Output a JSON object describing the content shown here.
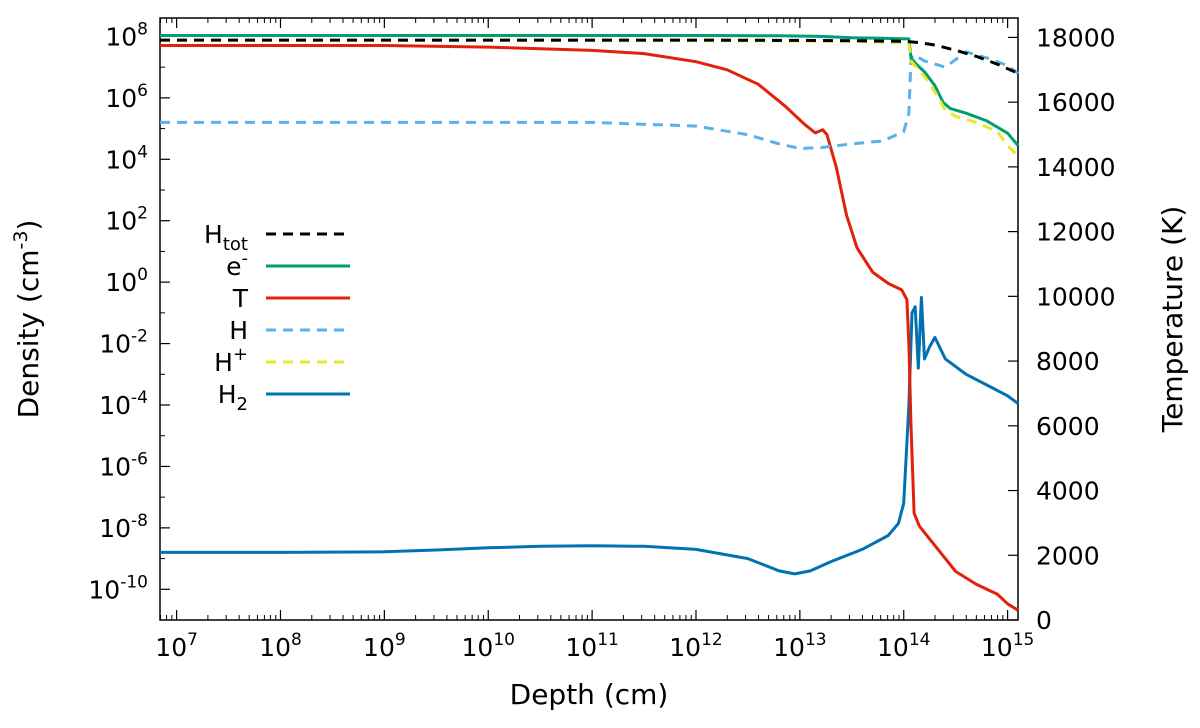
{
  "chart_data": {
    "type": "line",
    "title": "",
    "xlabel": "Depth (cm)",
    "ylabel_left": "Density (cm^-3)",
    "ylabel_right": "Temperature (K)",
    "xscale": "log",
    "yscale_left": "log",
    "xlim_log10": [
      6.84,
      15.1
    ],
    "ylim_left_log10": [
      -11.0,
      8.6
    ],
    "ylim_right": [
      0,
      18600
    ],
    "x_ticks": [
      {
        "base": "10",
        "exp": "7"
      },
      {
        "base": "10",
        "exp": "8"
      },
      {
        "base": "10",
        "exp": "9"
      },
      {
        "base": "10",
        "exp": "10"
      },
      {
        "base": "10",
        "exp": "11"
      },
      {
        "base": "10",
        "exp": "12"
      },
      {
        "base": "10",
        "exp": "13"
      },
      {
        "base": "10",
        "exp": "14"
      },
      {
        "base": "10",
        "exp": "15"
      }
    ],
    "y_left_ticks": [
      {
        "base": "10",
        "exp": "8"
      },
      {
        "base": "10",
        "exp": "6"
      },
      {
        "base": "10",
        "exp": "4"
      },
      {
        "base": "10",
        "exp": "2"
      },
      {
        "base": "10",
        "exp": "0"
      },
      {
        "base": "10",
        "exp": "-2"
      },
      {
        "base": "10",
        "exp": "-4"
      },
      {
        "base": "10",
        "exp": "-6"
      },
      {
        "base": "10",
        "exp": "-8"
      },
      {
        "base": "10",
        "exp": "-10"
      }
    ],
    "y_right_ticks": [
      "0",
      "2000",
      "4000",
      "6000",
      "8000",
      "10000",
      "12000",
      "14000",
      "16000",
      "18000"
    ],
    "legend_position": "left-middle",
    "grid": false,
    "series": [
      {
        "name": "Htot",
        "axis": "left",
        "color": "#000000",
        "dash": "dashed",
        "points_log10": [
          [
            6.84,
            7.88
          ],
          [
            10,
            7.88
          ],
          [
            12,
            7.88
          ],
          [
            13,
            7.87
          ],
          [
            13.5,
            7.86
          ],
          [
            14,
            7.84
          ],
          [
            14.15,
            7.8
          ],
          [
            14.3,
            7.72
          ],
          [
            14.5,
            7.55
          ],
          [
            14.7,
            7.35
          ],
          [
            14.9,
            7.1
          ],
          [
            15.1,
            6.8
          ]
        ]
      },
      {
        "name": "e-",
        "axis": "left",
        "color": "#009e73",
        "dash": "solid",
        "points_log10": [
          [
            6.84,
            8.03
          ],
          [
            10,
            8.03
          ],
          [
            12,
            8.03
          ],
          [
            12.8,
            8.02
          ],
          [
            13.2,
            8.0
          ],
          [
            13.5,
            7.96
          ],
          [
            13.8,
            7.94
          ],
          [
            14.05,
            7.92
          ],
          [
            14.07,
            7.3
          ],
          [
            14.12,
            7.1
          ],
          [
            14.2,
            6.85
          ],
          [
            14.3,
            6.4
          ],
          [
            14.38,
            5.85
          ],
          [
            14.45,
            5.65
          ],
          [
            14.6,
            5.5
          ],
          [
            14.8,
            5.25
          ],
          [
            15.0,
            4.85
          ],
          [
            15.1,
            4.45
          ]
        ]
      },
      {
        "name": "T",
        "axis": "right",
        "color": "#e3200b",
        "dash": "solid",
        "points_log10": [
          [
            6.84,
            17750
          ],
          [
            9,
            17750
          ],
          [
            10,
            17700
          ],
          [
            11,
            17600
          ],
          [
            11.5,
            17500
          ],
          [
            12,
            17250
          ],
          [
            12.3,
            17000
          ],
          [
            12.6,
            16550
          ],
          [
            12.85,
            15900
          ],
          [
            13.05,
            15300
          ],
          [
            13.15,
            15050
          ],
          [
            13.22,
            15150
          ],
          [
            13.26,
            15000
          ],
          [
            13.35,
            14000
          ],
          [
            13.45,
            12500
          ],
          [
            13.55,
            11500
          ],
          [
            13.7,
            10750
          ],
          [
            13.85,
            10400
          ],
          [
            13.98,
            10200
          ],
          [
            14.03,
            9900
          ],
          [
            14.05,
            8500
          ],
          [
            14.07,
            6000
          ],
          [
            14.1,
            3300
          ],
          [
            14.15,
            2900
          ],
          [
            14.3,
            2300
          ],
          [
            14.5,
            1500
          ],
          [
            14.7,
            1100
          ],
          [
            14.9,
            800
          ],
          [
            15.0,
            500
          ],
          [
            15.1,
            300
          ]
        ]
      },
      {
        "name": "H",
        "axis": "left",
        "color": "#56b4e9",
        "dash": "dashed",
        "points_log10": [
          [
            6.84,
            5.2
          ],
          [
            9,
            5.2
          ],
          [
            10,
            5.2
          ],
          [
            11,
            5.2
          ],
          [
            12,
            5.08
          ],
          [
            12.5,
            4.8
          ],
          [
            12.8,
            4.5
          ],
          [
            13.0,
            4.35
          ],
          [
            13.2,
            4.38
          ],
          [
            13.5,
            4.5
          ],
          [
            13.8,
            4.6
          ],
          [
            14.0,
            4.9
          ],
          [
            14.05,
            5.5
          ],
          [
            14.07,
            7.3
          ],
          [
            14.1,
            7.4
          ],
          [
            14.2,
            7.2
          ],
          [
            14.4,
            7.0
          ],
          [
            14.6,
            7.5
          ],
          [
            14.8,
            7.3
          ],
          [
            15.0,
            7.05
          ],
          [
            15.1,
            6.8
          ]
        ]
      },
      {
        "name": "H+",
        "axis": "left",
        "color": "#e8e82a",
        "dash": "dashed",
        "points_log10": [
          [
            6.84,
            7.88
          ],
          [
            10,
            7.87
          ],
          [
            12,
            7.86
          ],
          [
            13,
            7.85
          ],
          [
            13.5,
            7.84
          ],
          [
            14.0,
            7.8
          ],
          [
            14.05,
            7.75
          ],
          [
            14.07,
            7.2
          ],
          [
            14.12,
            7.0
          ],
          [
            14.2,
            6.7
          ],
          [
            14.3,
            6.2
          ],
          [
            14.4,
            5.6
          ],
          [
            14.5,
            5.4
          ],
          [
            14.7,
            5.2
          ],
          [
            14.9,
            4.9
          ],
          [
            15.0,
            4.45
          ],
          [
            15.1,
            4.1
          ]
        ]
      },
      {
        "name": "H2",
        "axis": "left",
        "color": "#0072b2",
        "dash": "solid",
        "points_log10": [
          [
            6.84,
            -8.8
          ],
          [
            8,
            -8.8
          ],
          [
            9,
            -8.78
          ],
          [
            9.5,
            -8.72
          ],
          [
            10.0,
            -8.65
          ],
          [
            10.5,
            -8.6
          ],
          [
            11.0,
            -8.58
          ],
          [
            11.5,
            -8.6
          ],
          [
            12.0,
            -8.7
          ],
          [
            12.5,
            -9.0
          ],
          [
            12.8,
            -9.4
          ],
          [
            12.95,
            -9.5
          ],
          [
            13.1,
            -9.4
          ],
          [
            13.3,
            -9.1
          ],
          [
            13.6,
            -8.7
          ],
          [
            13.85,
            -8.25
          ],
          [
            13.95,
            -7.85
          ],
          [
            14.0,
            -7.2
          ],
          [
            14.05,
            -4.0
          ],
          [
            14.08,
            -1.0
          ],
          [
            14.11,
            -0.8
          ],
          [
            14.14,
            -2.8
          ],
          [
            14.17,
            -0.5
          ],
          [
            14.2,
            -2.5
          ],
          [
            14.25,
            -2.1
          ],
          [
            14.3,
            -1.8
          ],
          [
            14.4,
            -2.5
          ],
          [
            14.6,
            -3.0
          ],
          [
            14.8,
            -3.35
          ],
          [
            15.0,
            -3.7
          ],
          [
            15.1,
            -3.95
          ]
        ]
      }
    ]
  }
}
